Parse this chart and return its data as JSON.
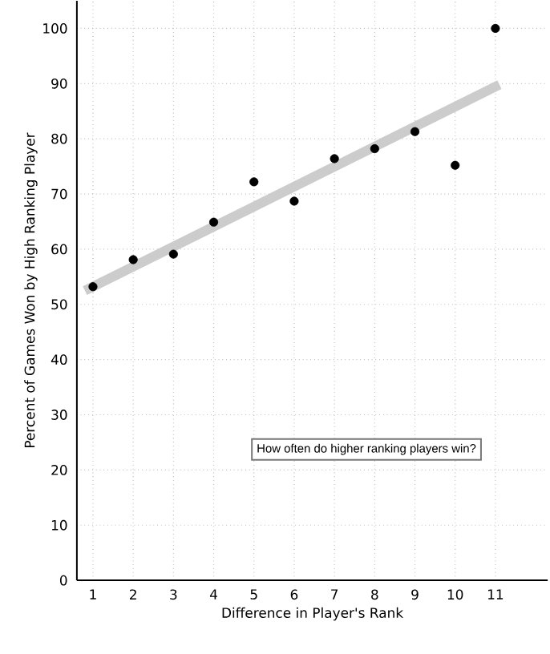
{
  "chart_data": {
    "type": "scatter",
    "xlabel": "Difference in Player's Rank",
    "ylabel": "Percent of Games Won by High Ranking Player",
    "annotations": [
      "How often do higher ranking players win?"
    ],
    "series": [
      {
        "type": "line",
        "marker": "none",
        "color": "#cccccc",
        "x": [
          0.8,
          11.1
        ],
        "values": [
          52.5,
          89.8
        ]
      },
      {
        "color": "#000000",
        "x": [
          1,
          2,
          3,
          4,
          5,
          6,
          7,
          8,
          9,
          10,
          11
        ],
        "values": [
          53.2,
          58.1,
          59.1,
          64.9,
          72.2,
          68.7,
          76.4,
          78.2,
          81.3,
          75.2,
          100
        ]
      }
    ],
    "xlim": [
      0.6,
      12.3
    ],
    "ylim": [
      0,
      105
    ],
    "xticks": [
      1,
      2,
      3,
      4,
      5,
      6,
      7,
      8,
      9,
      10,
      11
    ],
    "yticks": [
      0,
      10,
      20,
      30,
      40,
      50,
      60,
      70,
      80,
      90,
      100
    ],
    "grid": true,
    "marker": "circle"
  }
}
